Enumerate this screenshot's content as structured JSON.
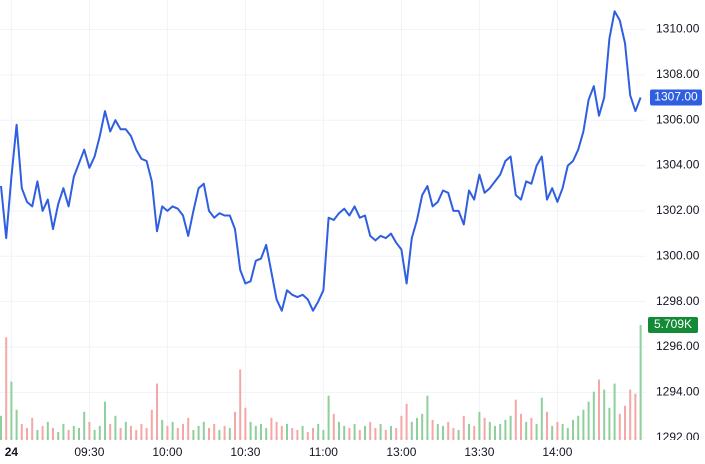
{
  "chart_data": {
    "type": "line",
    "categories": [
      null,
      null,
      "24",
      null,
      null,
      null,
      null,
      null,
      null,
      null,
      null,
      null,
      null,
      null,
      null,
      null,
      null,
      "09:30",
      null,
      null,
      null,
      null,
      null,
      null,
      null,
      null,
      null,
      null,
      null,
      null,
      null,
      null,
      "10:00",
      null,
      null,
      null,
      null,
      null,
      null,
      null,
      null,
      null,
      null,
      null,
      null,
      null,
      null,
      "10:30",
      null,
      null,
      null,
      null,
      null,
      null,
      null,
      null,
      null,
      null,
      null,
      null,
      null,
      null,
      "11:00",
      null,
      null,
      null,
      null,
      null,
      null,
      null,
      null,
      null,
      null,
      null,
      null,
      null,
      null,
      "13:00",
      null,
      null,
      null,
      null,
      null,
      null,
      null,
      null,
      null,
      null,
      null,
      null,
      null,
      null,
      "13:30",
      null,
      null,
      null,
      null,
      null,
      null,
      null,
      null,
      null,
      null,
      null,
      null,
      null,
      null,
      "14:00",
      null,
      null,
      null,
      null,
      null,
      null,
      null,
      null,
      null,
      null,
      null,
      null,
      null,
      null,
      null,
      null
    ],
    "series": [
      {
        "color": "#2f5fe0",
        "values": [
          1303.1,
          1300.8,
          1303.5,
          1305.8,
          1303.0,
          1302.4,
          1302.2,
          1303.3,
          1302.0,
          1302.5,
          1301.2,
          1302.3,
          1303.0,
          1302.2,
          1303.5,
          1304.1,
          1304.7,
          1303.9,
          1304.4,
          1305.3,
          1306.4,
          1305.5,
          1306.0,
          1305.6,
          1305.6,
          1305.3,
          1304.7,
          1304.3,
          1304.2,
          1303.3,
          1301.1,
          1302.2,
          1302.0,
          1302.2,
          1302.1,
          1301.8,
          1300.9,
          1302.0,
          1303.0,
          1303.2,
          1302.0,
          1301.7,
          1301.9,
          1301.8,
          1301.8,
          1301.2,
          1299.4,
          1298.8,
          1298.9,
          1299.8,
          1299.9,
          1300.5,
          1299.3,
          1298.1,
          1297.6,
          1298.5,
          1298.3,
          1298.2,
          1298.3,
          1298.1,
          1297.6,
          1298.0,
          1298.5,
          1301.7,
          1301.6,
          1301.9,
          1302.1,
          1301.8,
          1302.2,
          1301.7,
          1301.8,
          1300.9,
          1300.7,
          1300.9,
          1300.8,
          1301.0,
          1300.6,
          1300.3,
          1298.8,
          1300.8,
          1301.6,
          1302.7,
          1303.1,
          1302.2,
          1302.4,
          1302.9,
          1302.8,
          1302.0,
          1302.0,
          1301.4,
          1302.9,
          1302.5,
          1303.6,
          1302.8,
          1303.0,
          1303.3,
          1303.6,
          1304.2,
          1304.4,
          1302.7,
          1302.5,
          1303.3,
          1303.2,
          1304.0,
          1304.4,
          1302.5,
          1303.0,
          1302.4,
          1303.0,
          1304.0,
          1304.2,
          1304.7,
          1305.5,
          1306.9,
          1307.5,
          1306.2,
          1307.0,
          1309.6,
          1310.8,
          1310.4,
          1309.4,
          1307.1,
          1306.4,
          1307.0
        ]
      }
    ],
    "volume": {
      "up_color": "#8fcf9c",
      "down_color": "#f5a6a6",
      "tag_color": "#138a36",
      "values": [
        1.2,
        5.1,
        2.9,
        1.5,
        0.8,
        0.6,
        1.1,
        0.5,
        0.7,
        0.9,
        0.6,
        0.4,
        0.8,
        0.5,
        0.7,
        0.6,
        1.4,
        0.9,
        0.5,
        0.7,
        1.9,
        0.8,
        1.2,
        0.6,
        0.9,
        0.7,
        0.5,
        0.8,
        0.6,
        1.5,
        2.8,
        1.0,
        0.7,
        0.9,
        0.6,
        0.8,
        1.1,
        0.5,
        0.7,
        0.9,
        0.6,
        0.8,
        0.5,
        0.7,
        0.6,
        1.4,
        3.5,
        1.6,
        0.9,
        0.7,
        0.8,
        0.6,
        1.1,
        0.9,
        0.7,
        0.8,
        0.6,
        0.5,
        0.7,
        0.4,
        0.6,
        0.8,
        0.5,
        2.2,
        1.3,
        0.9,
        0.7,
        0.6,
        0.8,
        0.5,
        0.7,
        0.9,
        0.6,
        0.8,
        0.5,
        0.7,
        0.6,
        1.2,
        1.8,
        0.9,
        1.1,
        1.3,
        2.2,
        1.0,
        0.8,
        0.7,
        0.9,
        0.6,
        0.5,
        1.2,
        0.8,
        0.7,
        1.4,
        1.1,
        0.9,
        0.7,
        0.8,
        1.0,
        1.2,
        2.0,
        1.3,
        0.9,
        1.1,
        0.8,
        2.1,
        1.4,
        0.7,
        0.9,
        0.8,
        0.6,
        1.0,
        1.2,
        1.5,
        1.9,
        2.4,
        3.0,
        2.5,
        1.6,
        2.8,
        1.3,
        1.7,
        2.5,
        2.3,
        5.709
      ],
      "last_label": "5.709K"
    },
    "last_price": {
      "value": 1307,
      "label": "1307.00"
    },
    "ylim": [
      1291.9,
      1311.3
    ],
    "yticks": [
      {
        "value": 1292,
        "label": "1292.00"
      },
      {
        "value": 1294,
        "label": "1294.00"
      },
      {
        "value": 1296,
        "label": "1296.00"
      },
      {
        "value": 1298,
        "label": "1298.00"
      },
      {
        "value": 1300,
        "label": "1300.00"
      },
      {
        "value": 1302,
        "label": "1302.00"
      },
      {
        "value": 1304,
        "label": "1304.00"
      },
      {
        "value": 1306,
        "label": "1306.00"
      },
      {
        "value": 1308,
        "label": "1308.00"
      },
      {
        "value": 1310,
        "label": "1310.00"
      }
    ],
    "grid": true
  }
}
